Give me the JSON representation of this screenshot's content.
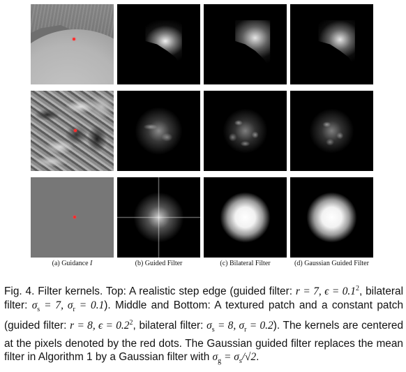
{
  "figure": {
    "columns": {
      "a": "(a) Guidance",
      "a_var": "I",
      "b": "(b) Guided Filter",
      "c": "(c) Bilateral Filter",
      "d": "(d) Gaussian Guided Filter"
    },
    "marker_color": "#ff2a2a",
    "caption": {
      "label": "Fig. 4.",
      "p1": "Filter kernels. Top: A realistic step edge (guided filter:",
      "m1": "r = 7, ϵ = 0.1",
      "e1": "2",
      "p2": ", bilateral filter:",
      "m2": "σ",
      "s2": "s",
      "m2b": " = 7, σ",
      "s2b": "r",
      "m2c": " = 0.1",
      "p3": "). Middle and Bottom: A textured patch and a constant patch (guided filter:",
      "m3": "r = 8, ϵ = 0.2",
      "e3": "2",
      "p4": ", bilateral filter:",
      "m4": "σ",
      "s4": "s",
      "m4b": " = 8, σ",
      "s4b": "r",
      "m4c": " = 0.2",
      "p5": "). The kernels are centered at the pixels denoted by the red dots. The Gaussian guided filter replaces the mean filter in Algorithm 1 by a Gaussian filter with",
      "m5": "σ",
      "s5": "g",
      "m5b": " = σ",
      "s5b": "s",
      "m5c": "/√2",
      "p6": "."
    }
  }
}
